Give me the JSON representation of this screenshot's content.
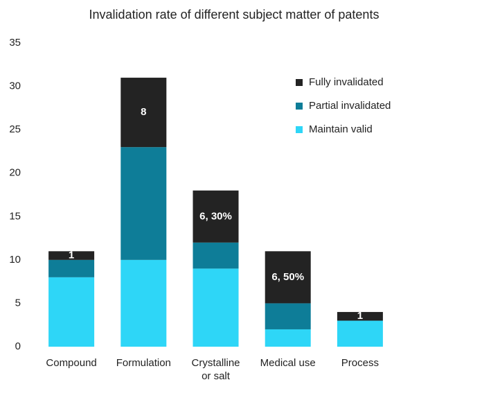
{
  "chart_data": {
    "type": "stacked_bar",
    "title": "Invalidation rate of different subject matter of patents",
    "categories": [
      "Compound",
      "Formulation",
      "Crystalline or salt",
      "Medical use",
      "Process"
    ],
    "series": [
      {
        "name": "Maintain valid",
        "color": "#2ed6f7",
        "values": [
          8,
          10,
          9,
          2,
          3
        ]
      },
      {
        "name": "Partial invalidated",
        "color": "#0e7d98",
        "values": [
          2,
          13,
          3,
          3,
          0
        ]
      },
      {
        "name": "Fully invalidated",
        "color": "#232323",
        "values": [
          1,
          8,
          6,
          6,
          1
        ],
        "value_labels": [
          "1",
          "8",
          "6, 30%",
          "6, 50%",
          "1"
        ]
      }
    ],
    "ylim": [
      0,
      35
    ],
    "yticks": [
      0,
      5,
      10,
      15,
      20,
      25,
      30,
      35
    ],
    "grid": false,
    "legend": "upper right"
  }
}
